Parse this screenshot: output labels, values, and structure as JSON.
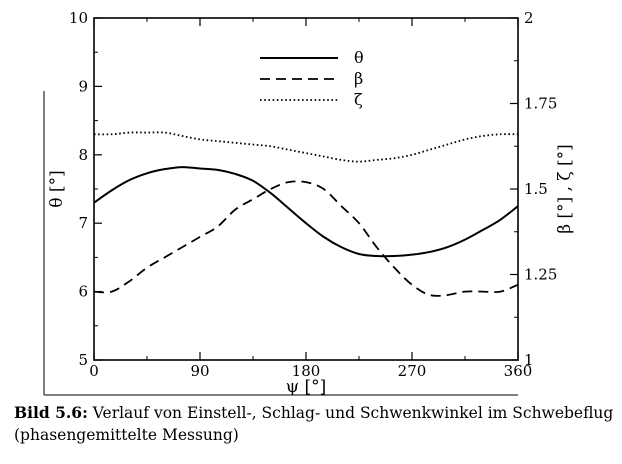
{
  "chart_data": {
    "type": "line",
    "xlabel": "ψ [°]",
    "ylabel_left": "θ [°]",
    "ylabel_right": "β [°] , ζ [°]",
    "xlim": [
      0,
      360
    ],
    "ylim_left": [
      5,
      10
    ],
    "ylim_right": [
      1,
      2
    ],
    "x_ticks": [
      "0",
      "90",
      "180",
      "270",
      "360"
    ],
    "y_ticks_left": [
      "5",
      "6",
      "7",
      "8",
      "9",
      "10"
    ],
    "y_ticks_right": [
      "1",
      "1.25",
      "1.5",
      "1.75",
      "2"
    ],
    "grid": false,
    "legend_position": "top-center",
    "series": [
      {
        "name": "θ",
        "axis": "left",
        "style": "solid",
        "x": [
          0,
          15,
          30,
          45,
          60,
          75,
          90,
          105,
          120,
          135,
          150,
          165,
          180,
          195,
          210,
          225,
          240,
          255,
          270,
          285,
          300,
          315,
          330,
          345,
          360
        ],
        "y": [
          7.3,
          7.48,
          7.63,
          7.73,
          7.79,
          7.82,
          7.8,
          7.78,
          7.72,
          7.62,
          7.44,
          7.22,
          7.0,
          6.8,
          6.65,
          6.55,
          6.52,
          6.52,
          6.54,
          6.58,
          6.65,
          6.76,
          6.9,
          7.05,
          7.25
        ]
      },
      {
        "name": "β",
        "axis": "right",
        "style": "dashed",
        "x": [
          0,
          15,
          30,
          45,
          60,
          75,
          90,
          105,
          120,
          135,
          150,
          165,
          180,
          195,
          210,
          225,
          240,
          255,
          270,
          285,
          300,
          315,
          330,
          345,
          360
        ],
        "y": [
          1.2,
          1.2,
          1.23,
          1.27,
          1.3,
          1.33,
          1.36,
          1.39,
          1.44,
          1.47,
          1.5,
          1.52,
          1.52,
          1.5,
          1.45,
          1.4,
          1.33,
          1.27,
          1.22,
          1.19,
          1.19,
          1.2,
          1.2,
          1.2,
          1.22
        ]
      },
      {
        "name": "ζ",
        "axis": "right",
        "style": "dotted",
        "x": [
          0,
          15,
          30,
          45,
          60,
          75,
          90,
          105,
          120,
          135,
          150,
          165,
          180,
          195,
          210,
          225,
          240,
          255,
          270,
          285,
          300,
          315,
          330,
          345,
          360
        ],
        "y": [
          1.66,
          1.66,
          1.665,
          1.665,
          1.665,
          1.655,
          1.645,
          1.64,
          1.635,
          1.63,
          1.625,
          1.615,
          1.605,
          1.595,
          1.585,
          1.58,
          1.585,
          1.59,
          1.6,
          1.615,
          1.63,
          1.645,
          1.655,
          1.66,
          1.66
        ]
      }
    ]
  },
  "caption": {
    "number": "Bild 5.6:",
    "text": "Verlauf von Einstell-, Schlag- und Schwenkwinkel im Schwebeflug (phasengemittelte Messung)"
  }
}
